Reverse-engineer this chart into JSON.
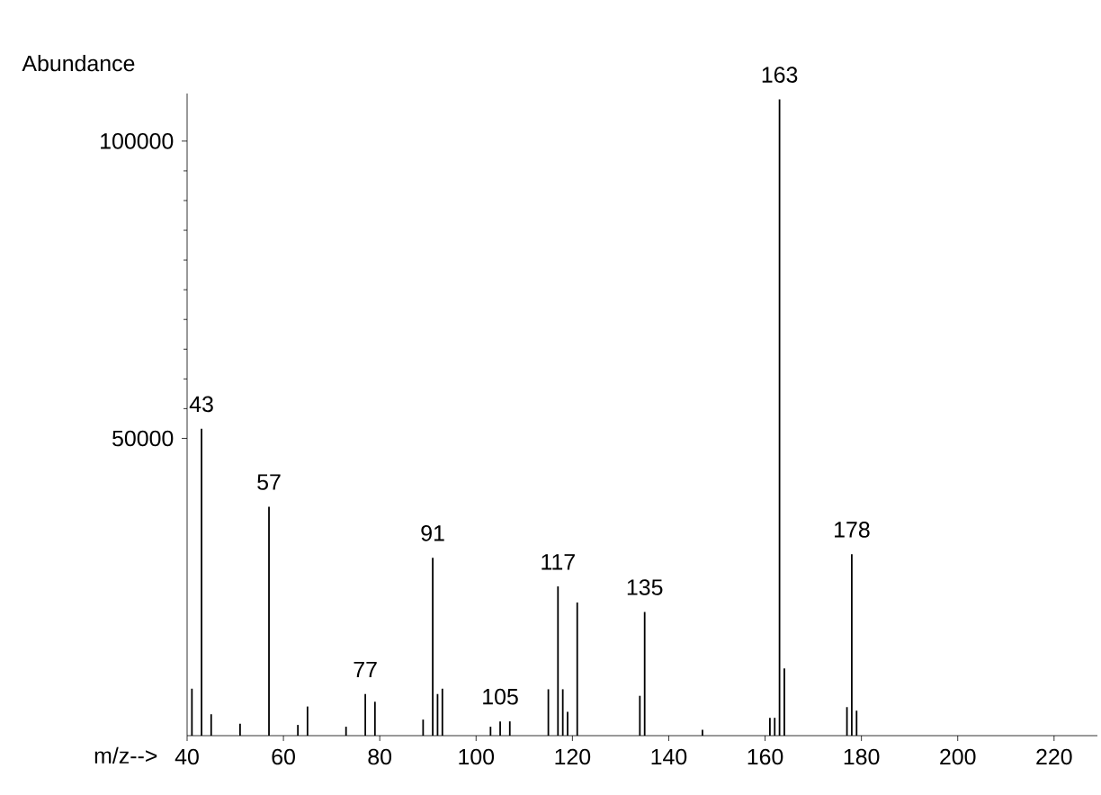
{
  "chart_data": {
    "type": "bar",
    "xlabel": "m/z-->",
    "ylabel": "Abundance",
    "x": [
      41,
      43,
      45,
      51,
      57,
      63,
      65,
      73,
      77,
      79,
      89,
      91,
      92,
      93,
      103,
      105,
      107,
      115,
      117,
      118,
      119,
      121,
      134,
      135,
      147,
      161,
      162,
      163,
      164,
      177,
      178,
      179
    ],
    "values": [
      7900,
      51600,
      3600,
      2000,
      38500,
      1800,
      4900,
      1500,
      7000,
      5700,
      2700,
      29900,
      7000,
      7900,
      1500,
      2400,
      2400,
      7800,
      25100,
      7800,
      4000,
      22400,
      6700,
      20800,
      1000,
      3000,
      3000,
      107000,
      11300,
      4800,
      30500,
      4200
    ],
    "color": "#000000",
    "xlim": [
      40,
      229
    ],
    "ylim": [
      0,
      108000
    ],
    "xticks": [
      40,
      60,
      80,
      100,
      120,
      140,
      160,
      180,
      200,
      220
    ],
    "yticks": [
      50000,
      100000
    ],
    "annotations": [
      {
        "text": "43",
        "x": 43,
        "y": 51600
      },
      {
        "text": "57",
        "x": 57,
        "y": 38500
      },
      {
        "text": "77",
        "x": 77,
        "y": 7000
      },
      {
        "text": "91",
        "x": 91,
        "y": 29900
      },
      {
        "text": "105",
        "x": 105,
        "y": 2400
      },
      {
        "text": "117",
        "x": 117,
        "y": 25100
      },
      {
        "text": "135",
        "x": 135,
        "y": 20800
      },
      {
        "text": "163",
        "x": 163,
        "y": 107000
      },
      {
        "text": "178",
        "x": 178,
        "y": 30500
      }
    ]
  }
}
